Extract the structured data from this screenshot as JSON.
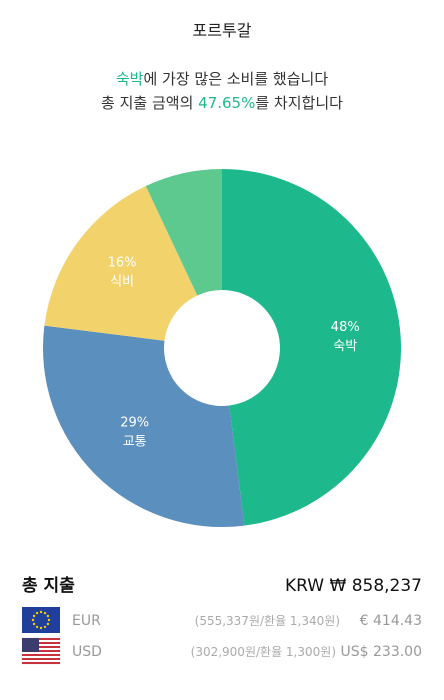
{
  "header": {
    "title": "포르투갈"
  },
  "headline": {
    "line1": {
      "highlight": "숙박",
      "rest": "에 가장 많은 소비를 했습니다"
    },
    "line2": {
      "before": "총 지출 금액의 ",
      "highlight": "47.65%",
      "after": "를 차지합니다"
    }
  },
  "chart_data": {
    "type": "donut",
    "categories": [
      "숙박",
      "교통",
      "식비",
      null
    ],
    "values": [
      48,
      29,
      16,
      7
    ],
    "value_labels": [
      "48%",
      "29%",
      "16%",
      null
    ],
    "colors": [
      "#1db98c",
      "#5b8fbd",
      "#f2d36b",
      "#5ec98f"
    ]
  },
  "summary": {
    "label": "총 지출",
    "total": "KRW ₩ 858,237",
    "rows": [
      {
        "currency": "EUR",
        "detail": "(555,337원/환율 1,340원)",
        "amount": "€ 414.43"
      },
      {
        "currency": "USD",
        "detail": "(302,900원/환율 1,300원)",
        "amount": "US$ 233.00"
      }
    ]
  }
}
